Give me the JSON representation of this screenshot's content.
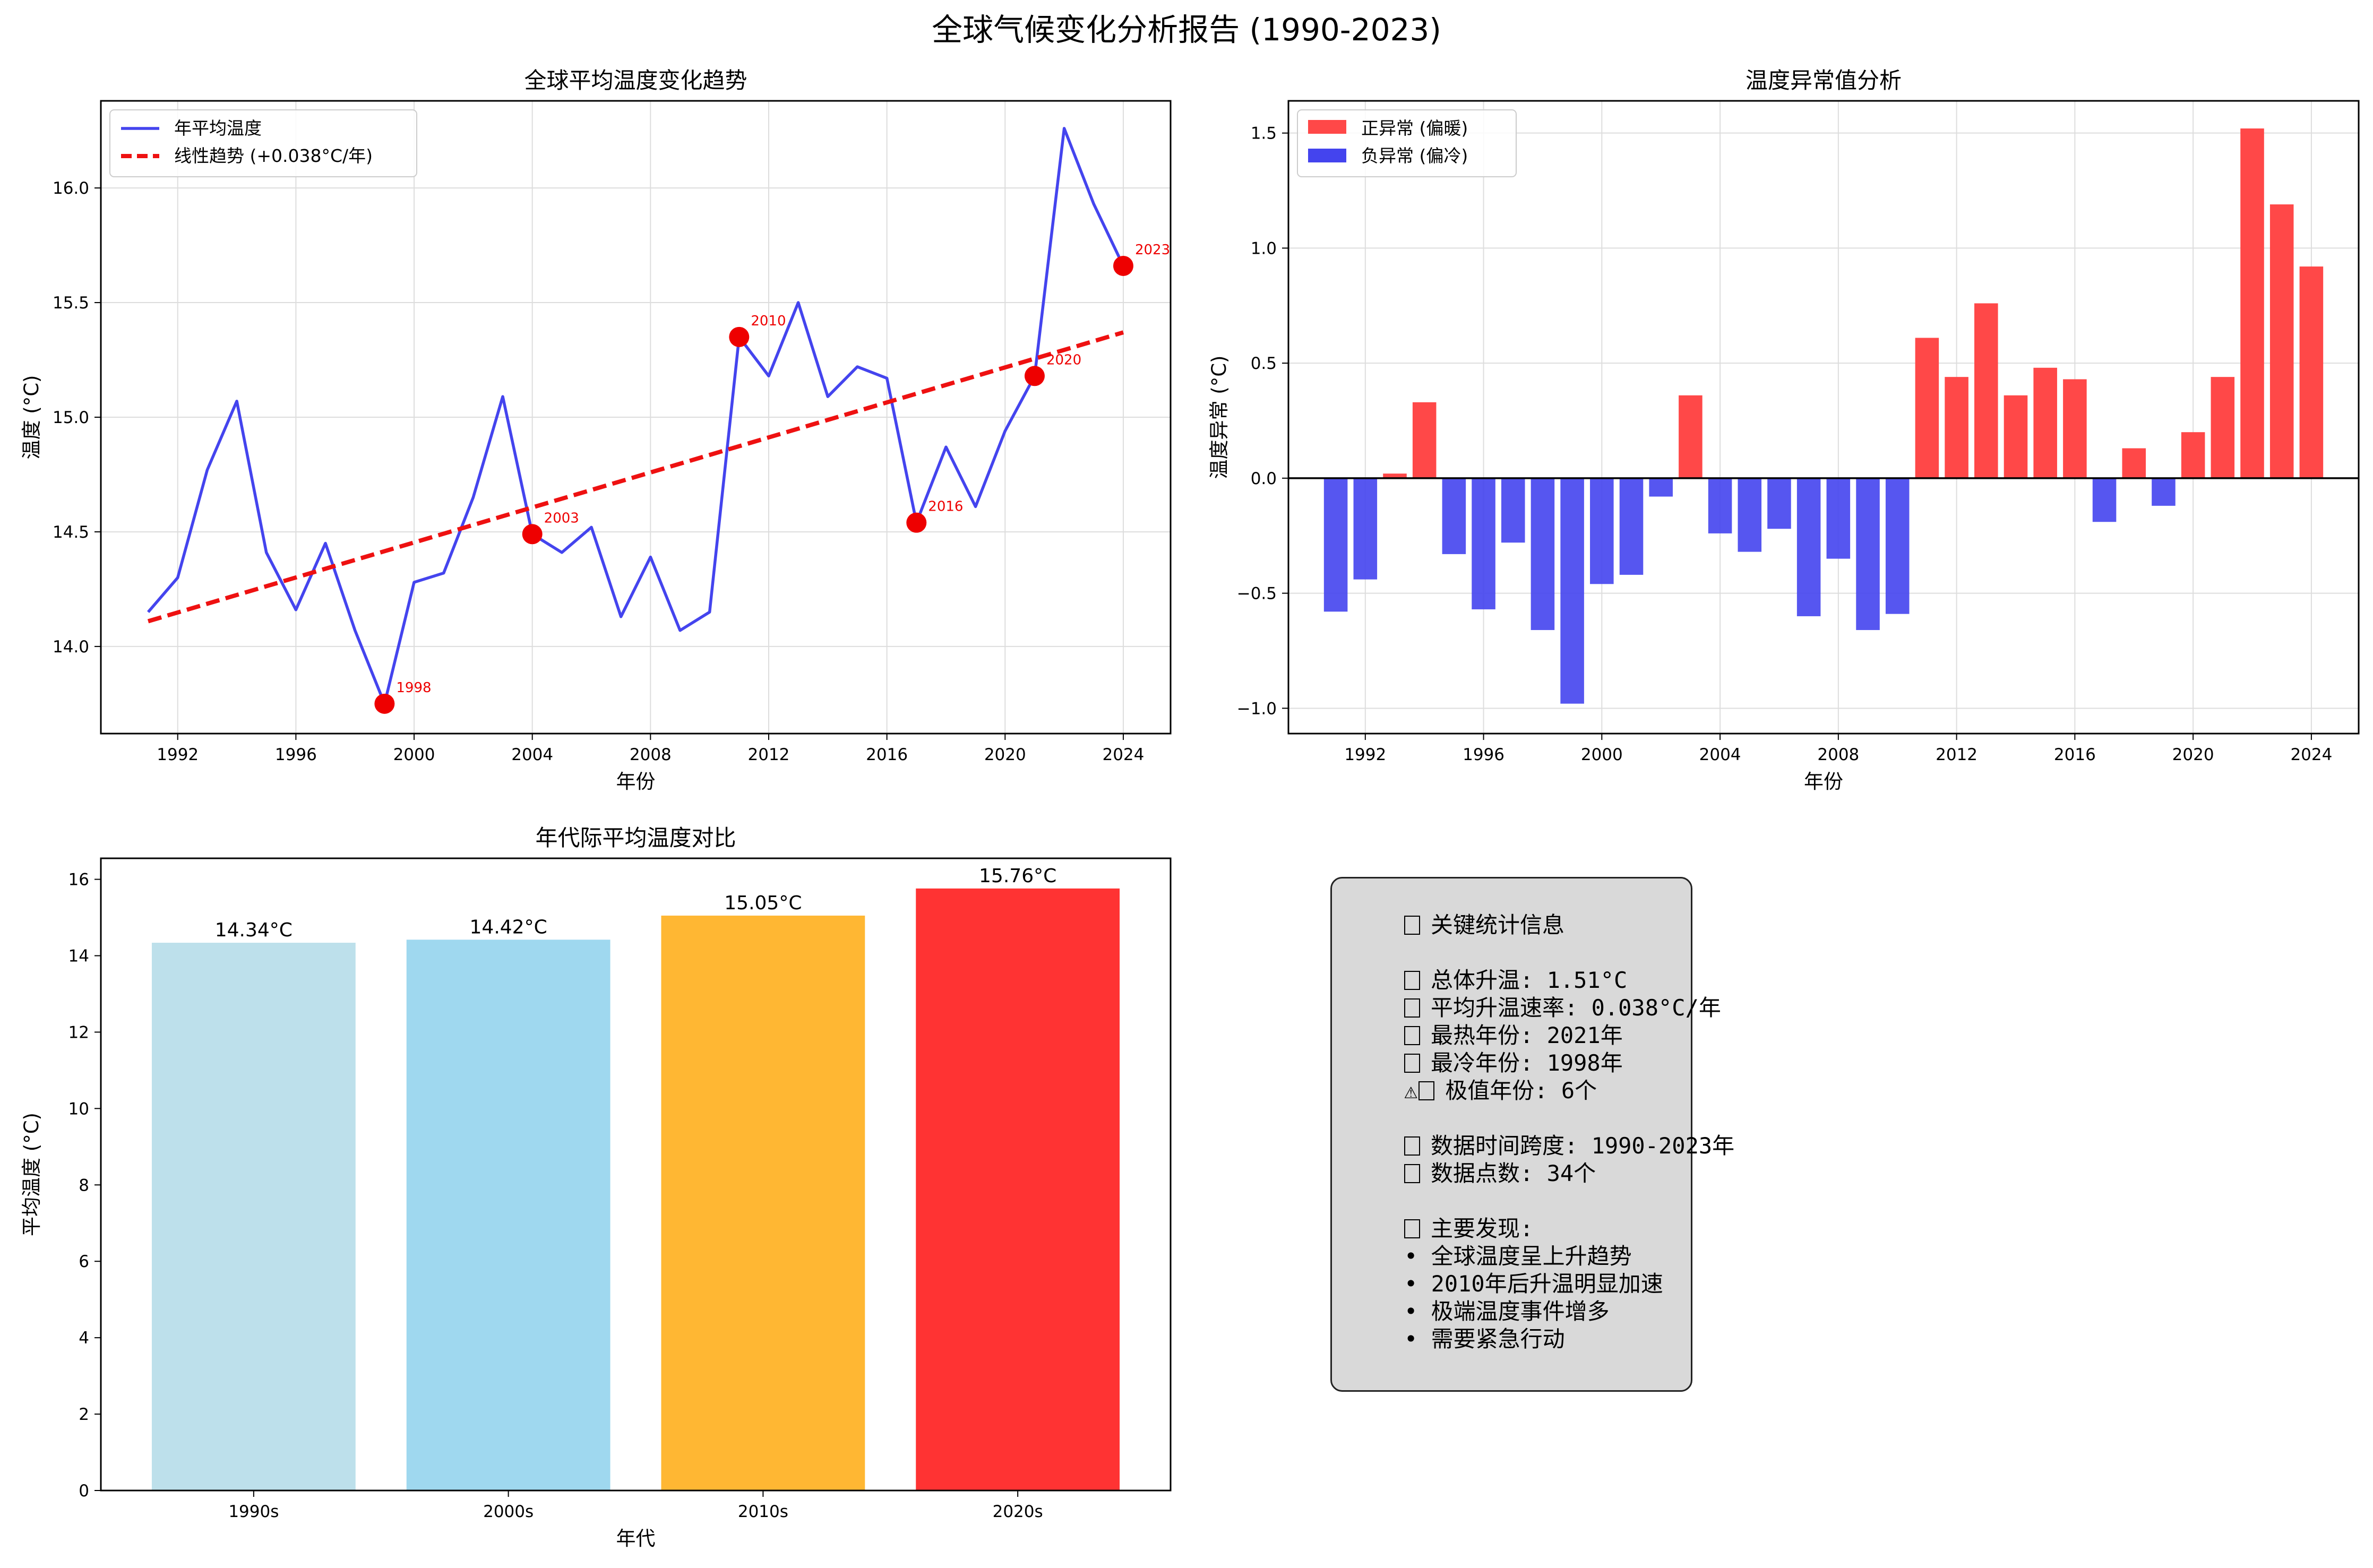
{
  "suptitle": "全球气候变化分析报告 (1990-2023)",
  "colors": {
    "blue": "#4444ee",
    "red": "#ff4848",
    "trend": "#ee1111",
    "point": "#ee0000",
    "lightblue": "#add8e6",
    "skyblue": "#87ceeb",
    "orange": "#ffa500",
    "crimson": "#ff0000",
    "grid": "#dddddd"
  },
  "chart_data": [
    {
      "type": "line",
      "title": "全球平均温度变化趋势",
      "xlabel": "年份",
      "ylabel": "温度 (°C)",
      "xlim": [
        1989.4,
        2025.6
      ],
      "ylim": [
        13.62,
        16.38
      ],
      "xticks": [
        1992,
        1996,
        2000,
        2004,
        2008,
        2012,
        2016,
        2020,
        2024
      ],
      "yticks": [
        14.0,
        14.5,
        15.0,
        15.5,
        16.0
      ],
      "legend_position": "top-left",
      "grid": true,
      "series": [
        {
          "name": "年平均温度",
          "x": [
            1991,
            1992,
            1993,
            1994,
            1995,
            1996,
            1997,
            1998,
            1999,
            2000,
            2001,
            2002,
            2003,
            2004,
            2005,
            2006,
            2007,
            2008,
            2009,
            2010,
            2011,
            2012,
            2013,
            2014,
            2015,
            2016,
            2017,
            2018,
            2019,
            2020,
            2021,
            2022,
            2023,
            2024
          ],
          "y": [
            14.15,
            14.3,
            14.77,
            15.07,
            14.41,
            14.16,
            14.45,
            14.07,
            13.75,
            14.28,
            14.32,
            14.65,
            15.09,
            14.49,
            14.41,
            14.52,
            14.13,
            14.39,
            14.07,
            14.15,
            15.35,
            15.18,
            15.5,
            15.09,
            15.22,
            15.17,
            14.54,
            14.87,
            14.61,
            14.94,
            15.18,
            16.26,
            15.93,
            15.66
          ]
        },
        {
          "name": "线性趋势 (+0.038°C/年)",
          "x": [
            1991,
            2024
          ],
          "y": [
            14.11,
            15.37
          ]
        }
      ],
      "annotations": [
        {
          "x": 1999,
          "y": 13.75,
          "label": "1998"
        },
        {
          "x": 2004,
          "y": 14.49,
          "label": "2003"
        },
        {
          "x": 2011,
          "y": 15.35,
          "label": "2010"
        },
        {
          "x": 2017,
          "y": 14.54,
          "label": "2016"
        },
        {
          "x": 2021,
          "y": 15.18,
          "label": "2020"
        },
        {
          "x": 2024,
          "y": 15.66,
          "label": "2023"
        }
      ]
    },
    {
      "type": "bar",
      "title": "温度异常值分析",
      "xlabel": "年份",
      "ylabel": "温度异常 (°C)",
      "xlim": [
        1989.4,
        2025.6
      ],
      "ylim": [
        -1.11,
        1.64
      ],
      "xticks": [
        1992,
        1996,
        2000,
        2004,
        2008,
        2012,
        2016,
        2020,
        2024
      ],
      "yticks": [
        -1.0,
        -0.5,
        0.0,
        0.5,
        1.0,
        1.5
      ],
      "legend_position": "top-left",
      "grid": true,
      "series": [
        {
          "name": "正异常 (偏暖)"
        },
        {
          "name": "负异常 (偏冷)"
        }
      ],
      "x": [
        1991,
        1992,
        1993,
        1994,
        1995,
        1996,
        1997,
        1998,
        1999,
        2000,
        2001,
        2002,
        2003,
        2004,
        2005,
        2006,
        2007,
        2008,
        2009,
        2010,
        2011,
        2012,
        2013,
        2014,
        2015,
        2016,
        2017,
        2018,
        2019,
        2020,
        2021,
        2022,
        2023,
        2024
      ],
      "values": [
        -0.58,
        -0.44,
        0.02,
        0.33,
        -0.33,
        -0.57,
        -0.28,
        -0.66,
        -0.98,
        -0.46,
        -0.42,
        -0.08,
        0.36,
        -0.24,
        -0.32,
        -0.22,
        -0.6,
        -0.35,
        -0.66,
        -0.59,
        0.61,
        0.44,
        0.76,
        0.36,
        0.48,
        0.43,
        -0.19,
        0.13,
        -0.12,
        0.2,
        0.44,
        1.52,
        1.19,
        0.92
      ]
    },
    {
      "type": "bar",
      "title": "年代际平均温度对比",
      "xlabel": "年代",
      "ylabel": "平均温度 (°C)",
      "categories": [
        "1990s",
        "2000s",
        "2010s",
        "2020s"
      ],
      "values": [
        14.34,
        14.42,
        15.05,
        15.76
      ],
      "value_labels": [
        "14.34°C",
        "14.42°C",
        "15.05°C",
        "15.76°C"
      ],
      "bar_colors": [
        "#add8e6",
        "#87ceeb",
        "#ffa500",
        "#ff0000"
      ],
      "ylim": [
        0,
        16.55
      ],
      "yticks": [
        0,
        2,
        4,
        6,
        8,
        10,
        12,
        14,
        16
      ],
      "grid": false
    }
  ],
  "info_box": {
    "title": "关键统计信息",
    "lines_a": [
      "总体升温: 1.51°C",
      "平均升温速率: 0.038°C/年",
      "最热年份: 2021年",
      "最冷年份: 1998年",
      "极值年份: 6个"
    ],
    "lines_b": [
      "数据时间跨度: 1990-2023年",
      "数据点数: 34个"
    ],
    "findings_title": "主要发现:",
    "findings": [
      "全球温度呈上升趋势",
      "2010年后升温明显加速",
      "极端温度事件增多",
      "需要紧急行动"
    ]
  }
}
